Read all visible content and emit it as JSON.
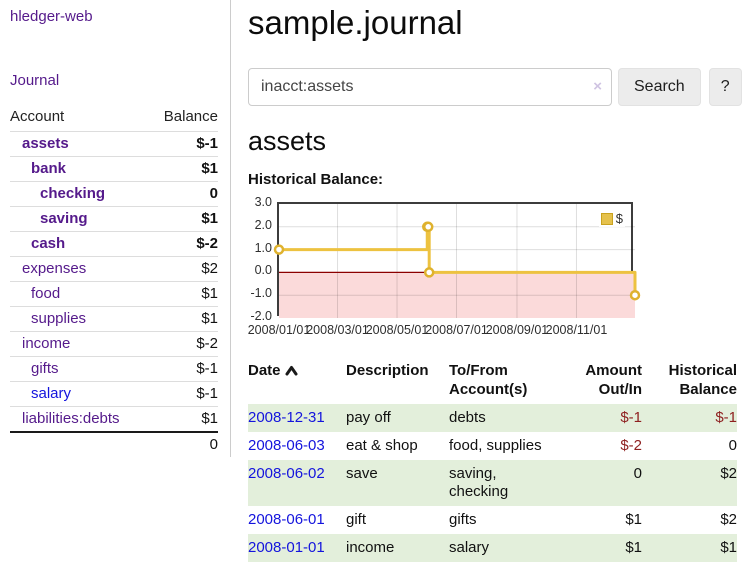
{
  "app": {
    "title": "hledger-web"
  },
  "sidebar": {
    "journal_link": "Journal",
    "accounts_table": {
      "headers": {
        "account": "Account",
        "balance": "Balance"
      },
      "rows": [
        {
          "name": "assets",
          "depth": 1,
          "balance": "$-1",
          "bold": true,
          "balance_style": "neg-strong",
          "link": "visited"
        },
        {
          "name": "bank",
          "depth": 2,
          "balance": "$1",
          "bold": true,
          "balance_style": "",
          "link": "visited"
        },
        {
          "name": "checking",
          "depth": 3,
          "balance": "0",
          "bold": true,
          "balance_style": "",
          "link": "visited"
        },
        {
          "name": "saving",
          "depth": 3,
          "balance": "$1",
          "bold": true,
          "balance_style": "",
          "link": "visited"
        },
        {
          "name": "cash",
          "depth": 2,
          "balance": "$-2",
          "bold": true,
          "balance_style": "neg-strong",
          "link": "visited"
        },
        {
          "name": "expenses",
          "depth": 1,
          "balance": "$2",
          "bold": false,
          "balance_style": "",
          "link": "visited"
        },
        {
          "name": "food",
          "depth": 2,
          "balance": "$1",
          "bold": false,
          "balance_style": "",
          "link": "visited"
        },
        {
          "name": "supplies",
          "depth": 2,
          "balance": "$1",
          "bold": false,
          "balance_style": "",
          "link": "visited"
        },
        {
          "name": "income",
          "depth": 1,
          "balance": "$-2",
          "bold": false,
          "balance_style": "neg-muted",
          "link": "visited"
        },
        {
          "name": "gifts",
          "depth": 2,
          "balance": "$-1",
          "bold": false,
          "balance_style": "neg-muted",
          "link": "visited"
        },
        {
          "name": "salary",
          "depth": 2,
          "balance": "$-1",
          "bold": false,
          "balance_style": "neg-muted",
          "link": "unvisited"
        },
        {
          "name": "liabilities:debts",
          "depth": 1,
          "balance": "$1",
          "bold": false,
          "balance_style": "",
          "link": "visited"
        }
      ],
      "total": "0"
    }
  },
  "main": {
    "title": "sample.journal",
    "search": {
      "value": "inacct:assets",
      "clear_icon": "×",
      "button_label": "Search",
      "help_label": "?"
    },
    "account_heading": "assets",
    "chart_label": "Historical Balance:",
    "register": {
      "headers": {
        "date": "Date",
        "description": "Description",
        "accounts": "To/From Account(s)",
        "amount": "Amount Out/In",
        "balance": "Historical Balance"
      },
      "rows": [
        {
          "date": "2008-12-31",
          "description": "pay off",
          "accounts": "debts",
          "amount": "$-1",
          "balance": "$-1",
          "amount_style": "neg-strong",
          "balance_style": "neg-strong"
        },
        {
          "date": "2008-06-03",
          "description": "eat & shop",
          "accounts": "food, supplies",
          "amount": "$-2",
          "balance": "0",
          "amount_style": "neg-strong",
          "balance_style": ""
        },
        {
          "date": "2008-06-02",
          "description": "save",
          "accounts": "saving, checking",
          "amount": "0",
          "balance": "$2",
          "amount_style": "",
          "balance_style": ""
        },
        {
          "date": "2008-06-01",
          "description": "gift",
          "accounts": "gifts",
          "amount": "$1",
          "balance": "$2",
          "amount_style": "",
          "balance_style": ""
        },
        {
          "date": "2008-01-01",
          "description": "income",
          "accounts": "salary",
          "amount": "$1",
          "balance": "$1",
          "amount_style": "",
          "balance_style": ""
        }
      ]
    }
  },
  "chart_data": {
    "type": "line",
    "title": "Historical Balance:",
    "legend": "$",
    "legend_position": "top-right",
    "grid": true,
    "step": true,
    "xlim": [
      "2008-01-01",
      "2008-12-31"
    ],
    "ylim": [
      -2.0,
      3.0
    ],
    "y_ticks": [
      3.0,
      2.0,
      1.0,
      0.0,
      -1.0,
      -2.0
    ],
    "x_ticks": [
      "2008/01/01",
      "2008/03/01",
      "2008/05/01",
      "2008/07/01",
      "2008/09/01",
      "2008/11/01"
    ],
    "series": [
      {
        "name": "$",
        "points": [
          [
            "2008-01-01",
            1
          ],
          [
            "2008-06-01",
            2
          ],
          [
            "2008-06-02",
            2
          ],
          [
            "2008-06-03",
            0
          ],
          [
            "2008-12-31",
            -1
          ]
        ]
      }
    ]
  },
  "colors": {
    "link_visited_purple": "#551a8b",
    "link_blue": "#1414dd",
    "negative_strong": "#8e1f1f",
    "negative_muted": "#bf7e7e",
    "row_stripe_green": "#e3efdb",
    "chart_line_gold": "#edc240",
    "chart_marker_stroke": "#dfb22e",
    "chart_negative_region": "#fbdada",
    "chart_zero_line": "#8b0000",
    "chart_border": "#3c3c3c"
  }
}
